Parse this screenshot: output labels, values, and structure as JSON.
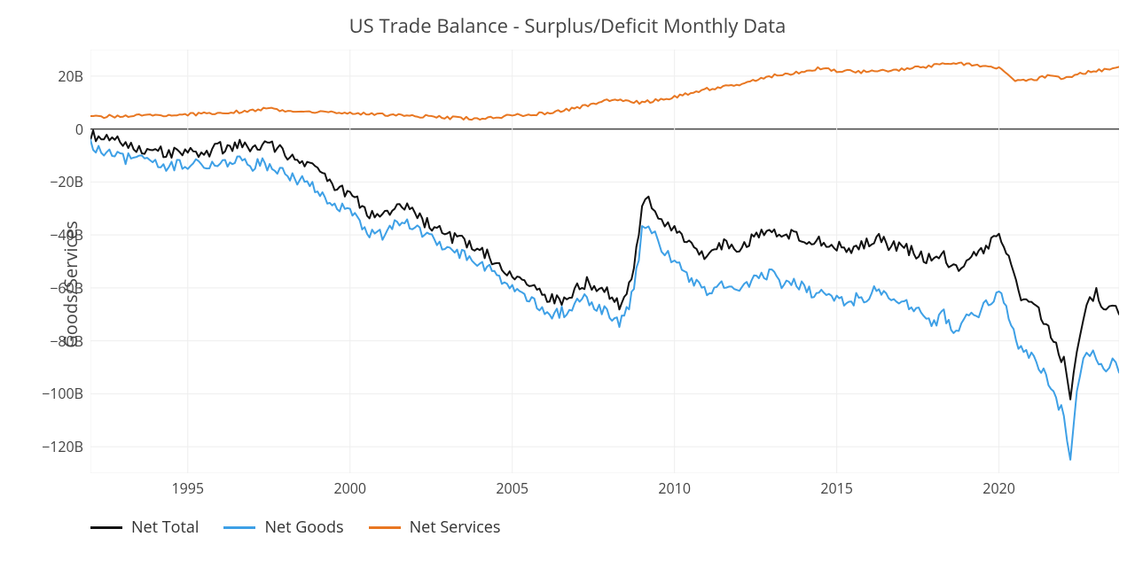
{
  "chart": {
    "type": "line",
    "title": "US Trade Balance - Surplus/Deficit Monthly Data",
    "title_fontsize": 22,
    "ylabel": "Goods/Services",
    "ylabel_fontsize": 20,
    "background_color": "#ffffff",
    "grid_color": "#eeeeee",
    "zero_line_color": "#444444",
    "tick_fontsize": 16,
    "tick_color": "#444444",
    "plot_border_color": "#f0f0f0",
    "x": {
      "min": 1992,
      "max": 2023.7,
      "ticks": [
        1995,
        2000,
        2005,
        2010,
        2015,
        2020
      ],
      "tick_labels": [
        "1995",
        "2000",
        "2005",
        "2010",
        "2015",
        "2020"
      ]
    },
    "y": {
      "min": -130,
      "max": 30,
      "ticks": [
        20,
        0,
        -20,
        -40,
        -60,
        -80,
        -100,
        -120
      ],
      "tick_labels": [
        "20B",
        "0",
        "−20B",
        "−40B",
        "−60B",
        "−80B",
        "−100B",
        "−120B"
      ]
    },
    "line_width": 2,
    "legend": {
      "position": "bottom-left",
      "fontsize": 18,
      "items": [
        {
          "label": "Net Total",
          "color": "#111111"
        },
        {
          "label": "Net Goods",
          "color": "#3ea0e6"
        },
        {
          "label": "Net Services",
          "color": "#e87722"
        }
      ]
    },
    "series": [
      {
        "name": "Net Total",
        "color": "#111111",
        "points": [
          [
            1992.0,
            -2
          ],
          [
            1992.5,
            -4
          ],
          [
            1993.0,
            -5
          ],
          [
            1993.5,
            -7
          ],
          [
            1994.0,
            -8
          ],
          [
            1994.5,
            -9
          ],
          [
            1995.0,
            -8
          ],
          [
            1995.5,
            -9
          ],
          [
            1996.0,
            -7
          ],
          [
            1996.3,
            -8
          ],
          [
            1996.6,
            -6
          ],
          [
            1997.0,
            -8
          ],
          [
            1997.3,
            -7
          ],
          [
            1997.6,
            -6
          ],
          [
            1998.0,
            -9
          ],
          [
            1998.3,
            -12
          ],
          [
            1998.6,
            -13
          ],
          [
            1999.0,
            -16
          ],
          [
            1999.3,
            -20
          ],
          [
            1999.6,
            -22
          ],
          [
            2000.0,
            -25
          ],
          [
            2000.3,
            -28
          ],
          [
            2000.6,
            -32
          ],
          [
            2001.0,
            -33
          ],
          [
            2001.3,
            -30
          ],
          [
            2001.6,
            -28
          ],
          [
            2002.0,
            -32
          ],
          [
            2002.3,
            -35
          ],
          [
            2002.6,
            -37
          ],
          [
            2003.0,
            -40
          ],
          [
            2003.3,
            -42
          ],
          [
            2003.6,
            -43
          ],
          [
            2004.0,
            -46
          ],
          [
            2004.3,
            -48
          ],
          [
            2004.6,
            -52
          ],
          [
            2005.0,
            -55
          ],
          [
            2005.3,
            -58
          ],
          [
            2005.6,
            -60
          ],
          [
            2006.0,
            -63
          ],
          [
            2006.3,
            -65
          ],
          [
            2006.6,
            -64
          ],
          [
            2007.0,
            -60
          ],
          [
            2007.3,
            -58
          ],
          [
            2007.6,
            -60
          ],
          [
            2008.0,
            -62
          ],
          [
            2008.3,
            -66
          ],
          [
            2008.6,
            -60
          ],
          [
            2008.9,
            -42
          ],
          [
            2009.0,
            -28
          ],
          [
            2009.2,
            -26
          ],
          [
            2009.4,
            -30
          ],
          [
            2009.6,
            -34
          ],
          [
            2009.8,
            -36
          ],
          [
            2010.0,
            -38
          ],
          [
            2010.3,
            -42
          ],
          [
            2010.6,
            -45
          ],
          [
            2011.0,
            -48
          ],
          [
            2011.3,
            -45
          ],
          [
            2011.6,
            -43
          ],
          [
            2012.0,
            -46
          ],
          [
            2012.3,
            -42
          ],
          [
            2012.6,
            -40
          ],
          [
            2013.0,
            -38
          ],
          [
            2013.3,
            -42
          ],
          [
            2013.6,
            -40
          ],
          [
            2014.0,
            -41
          ],
          [
            2014.3,
            -43
          ],
          [
            2014.6,
            -42
          ],
          [
            2015.0,
            -44
          ],
          [
            2015.3,
            -46
          ],
          [
            2015.6,
            -44
          ],
          [
            2016.0,
            -43
          ],
          [
            2016.3,
            -40
          ],
          [
            2016.6,
            -44
          ],
          [
            2017.0,
            -45
          ],
          [
            2017.3,
            -46
          ],
          [
            2017.6,
            -48
          ],
          [
            2018.0,
            -50
          ],
          [
            2018.3,
            -48
          ],
          [
            2018.6,
            -53
          ],
          [
            2019.0,
            -50
          ],
          [
            2019.3,
            -48
          ],
          [
            2019.6,
            -45
          ],
          [
            2020.0,
            -40
          ],
          [
            2020.3,
            -48
          ],
          [
            2020.6,
            -62
          ],
          [
            2021.0,
            -66
          ],
          [
            2021.3,
            -70
          ],
          [
            2021.6,
            -78
          ],
          [
            2022.0,
            -88
          ],
          [
            2022.2,
            -102
          ],
          [
            2022.4,
            -82
          ],
          [
            2022.6,
            -70
          ],
          [
            2022.8,
            -65
          ],
          [
            2023.0,
            -62
          ],
          [
            2023.3,
            -70
          ],
          [
            2023.5,
            -66
          ],
          [
            2023.7,
            -70
          ]
        ]
      },
      {
        "name": "Net Goods",
        "color": "#3ea0e6",
        "points": [
          [
            1992.0,
            -6
          ],
          [
            1992.5,
            -9
          ],
          [
            1993.0,
            -11
          ],
          [
            1993.5,
            -12
          ],
          [
            1994.0,
            -13
          ],
          [
            1994.5,
            -14
          ],
          [
            1995.0,
            -13
          ],
          [
            1995.5,
            -14
          ],
          [
            1996.0,
            -12
          ],
          [
            1996.3,
            -14
          ],
          [
            1996.6,
            -12
          ],
          [
            1997.0,
            -14
          ],
          [
            1997.3,
            -13
          ],
          [
            1997.6,
            -14
          ],
          [
            1998.0,
            -16
          ],
          [
            1998.3,
            -19
          ],
          [
            1998.6,
            -20
          ],
          [
            1999.0,
            -23
          ],
          [
            1999.3,
            -27
          ],
          [
            1999.6,
            -29
          ],
          [
            2000.0,
            -32
          ],
          [
            2000.3,
            -35
          ],
          [
            2000.6,
            -39
          ],
          [
            2001.0,
            -40
          ],
          [
            2001.3,
            -36
          ],
          [
            2001.6,
            -34
          ],
          [
            2002.0,
            -37
          ],
          [
            2002.3,
            -40
          ],
          [
            2002.6,
            -42
          ],
          [
            2003.0,
            -45
          ],
          [
            2003.3,
            -47
          ],
          [
            2003.6,
            -48
          ],
          [
            2004.0,
            -51
          ],
          [
            2004.3,
            -53
          ],
          [
            2004.6,
            -57
          ],
          [
            2005.0,
            -60
          ],
          [
            2005.3,
            -63
          ],
          [
            2005.6,
            -65
          ],
          [
            2006.0,
            -68
          ],
          [
            2006.3,
            -70
          ],
          [
            2006.6,
            -69
          ],
          [
            2007.0,
            -66
          ],
          [
            2007.3,
            -64
          ],
          [
            2007.6,
            -67
          ],
          [
            2008.0,
            -70
          ],
          [
            2008.3,
            -73
          ],
          [
            2008.6,
            -68
          ],
          [
            2008.9,
            -50
          ],
          [
            2009.0,
            -36
          ],
          [
            2009.2,
            -35
          ],
          [
            2009.4,
            -40
          ],
          [
            2009.6,
            -45
          ],
          [
            2009.8,
            -47
          ],
          [
            2010.0,
            -50
          ],
          [
            2010.3,
            -55
          ],
          [
            2010.6,
            -58
          ],
          [
            2011.0,
            -62
          ],
          [
            2011.3,
            -60
          ],
          [
            2011.6,
            -58
          ],
          [
            2012.0,
            -62
          ],
          [
            2012.3,
            -58
          ],
          [
            2012.6,
            -56
          ],
          [
            2013.0,
            -54
          ],
          [
            2013.3,
            -60
          ],
          [
            2013.6,
            -57
          ],
          [
            2014.0,
            -60
          ],
          [
            2014.3,
            -62
          ],
          [
            2014.6,
            -61
          ],
          [
            2015.0,
            -64
          ],
          [
            2015.3,
            -67
          ],
          [
            2015.6,
            -64
          ],
          [
            2016.0,
            -63
          ],
          [
            2016.3,
            -60
          ],
          [
            2016.6,
            -64
          ],
          [
            2017.0,
            -66
          ],
          [
            2017.3,
            -67
          ],
          [
            2017.6,
            -70
          ],
          [
            2018.0,
            -73
          ],
          [
            2018.3,
            -70
          ],
          [
            2018.6,
            -76
          ],
          [
            2019.0,
            -72
          ],
          [
            2019.3,
            -70
          ],
          [
            2019.6,
            -66
          ],
          [
            2020.0,
            -62
          ],
          [
            2020.3,
            -70
          ],
          [
            2020.6,
            -82
          ],
          [
            2021.0,
            -86
          ],
          [
            2021.3,
            -90
          ],
          [
            2021.6,
            -98
          ],
          [
            2022.0,
            -108
          ],
          [
            2022.2,
            -125
          ],
          [
            2022.4,
            -100
          ],
          [
            2022.6,
            -88
          ],
          [
            2022.8,
            -84
          ],
          [
            2023.0,
            -86
          ],
          [
            2023.3,
            -92
          ],
          [
            2023.5,
            -88
          ],
          [
            2023.7,
            -92
          ]
        ]
      },
      {
        "name": "Net Services",
        "color": "#e87722",
        "points": [
          [
            1992.0,
            4.5
          ],
          [
            1993.0,
            5.0
          ],
          [
            1994.0,
            5.2
          ],
          [
            1995.0,
            5.5
          ],
          [
            1996.0,
            6.0
          ],
          [
            1997.0,
            7.0
          ],
          [
            1997.5,
            7.8
          ],
          [
            1998.0,
            6.8
          ],
          [
            1999.0,
            6.5
          ],
          [
            2000.0,
            6.0
          ],
          [
            2001.0,
            5.5
          ],
          [
            2002.0,
            5.0
          ],
          [
            2003.0,
            4.2
          ],
          [
            2004.0,
            4.0
          ],
          [
            2005.0,
            5.0
          ],
          [
            2006.0,
            6.0
          ],
          [
            2007.0,
            8.0
          ],
          [
            2008.0,
            11.0
          ],
          [
            2009.0,
            10.0
          ],
          [
            2010.0,
            12.0
          ],
          [
            2011.0,
            15.0
          ],
          [
            2012.0,
            17.0
          ],
          [
            2013.0,
            20.0
          ],
          [
            2014.0,
            21.5
          ],
          [
            2014.5,
            23.0
          ],
          [
            2015.0,
            22.0
          ],
          [
            2016.0,
            21.5
          ],
          [
            2017.0,
            22.5
          ],
          [
            2018.0,
            24.0
          ],
          [
            2018.6,
            25.0
          ],
          [
            2019.0,
            24.5
          ],
          [
            2019.5,
            24.0
          ],
          [
            2020.0,
            23.0
          ],
          [
            2020.5,
            18.0
          ],
          [
            2021.0,
            18.5
          ],
          [
            2021.5,
            20.0
          ],
          [
            2022.0,
            19.0
          ],
          [
            2022.5,
            21.0
          ],
          [
            2023.0,
            22.0
          ],
          [
            2023.5,
            23.0
          ],
          [
            2023.7,
            23.5
          ]
        ]
      }
    ]
  }
}
